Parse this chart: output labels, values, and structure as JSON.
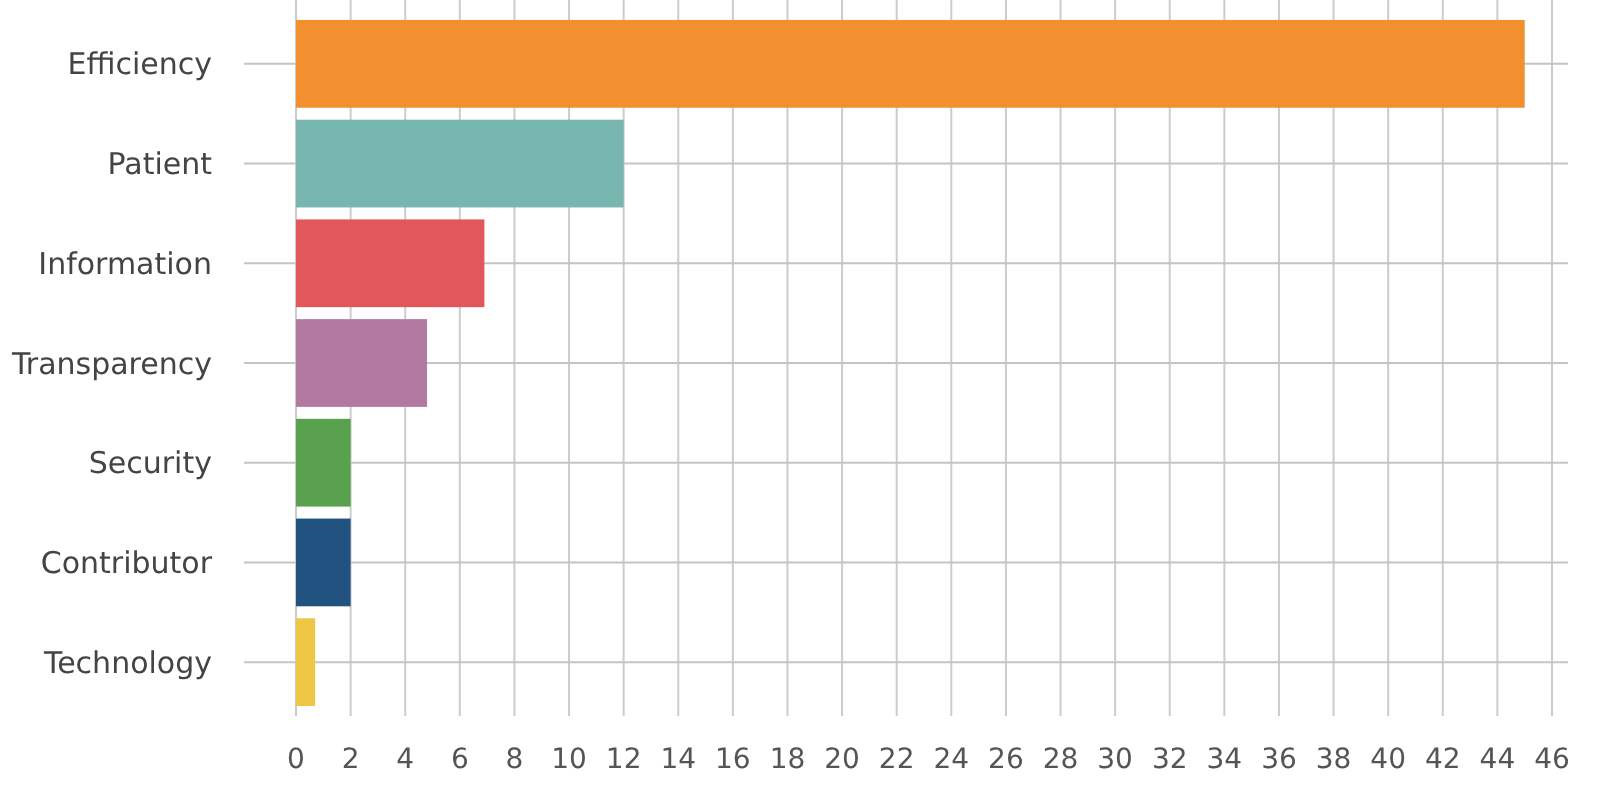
{
  "chart_data": {
    "type": "bar",
    "orientation": "horizontal",
    "categories": [
      "Efficiency",
      "Patient",
      "Information",
      "Transparency",
      "Security",
      "Contributor",
      "Technology"
    ],
    "values": [
      45,
      12,
      6.9,
      4.8,
      2,
      2,
      0.7
    ],
    "colors": [
      "#f28f2f",
      "#78b6b0",
      "#e2575c",
      "#b27aa1",
      "#59a14f",
      "#225380",
      "#eec643"
    ],
    "xlim": [
      0,
      46
    ],
    "xticks": [
      0,
      2,
      4,
      6,
      8,
      10,
      12,
      14,
      16,
      18,
      20,
      22,
      24,
      26,
      28,
      30,
      32,
      34,
      36,
      38,
      40,
      42,
      44,
      46
    ],
    "grid": true
  }
}
